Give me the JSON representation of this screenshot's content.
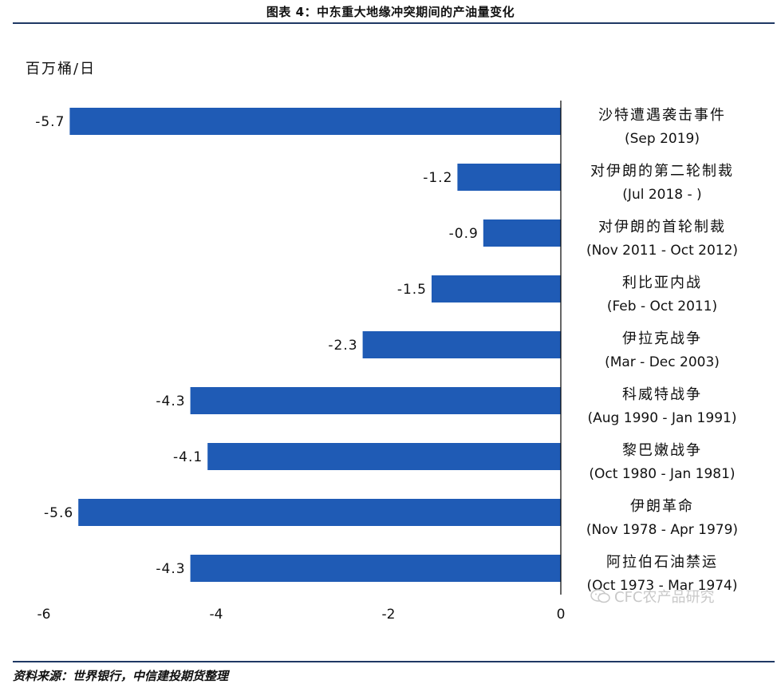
{
  "header": {
    "title": "图表 4：中东重大地缘冲突期间的产油量变化"
  },
  "footer": {
    "source": "资料来源：世界银行，中信建投期货整理"
  },
  "watermark": {
    "text": "CFC农产品研究",
    "icon": "wechat-icon"
  },
  "colors": {
    "bar": "#1f5bb5",
    "rule": "#1f3864",
    "axis": "#000000"
  },
  "chart_data": {
    "type": "bar",
    "orientation": "horizontal",
    "ylabel": "百万桶/日",
    "xlim": [
      -6,
      0
    ],
    "xticks": [
      "-6",
      "-4",
      "-2",
      "0"
    ],
    "xtick_values": [
      -6,
      -4,
      -2,
      0
    ],
    "grid": false,
    "categories": [
      {
        "name": "沙特遭遇袭击事件",
        "period": "(Sep 2019)"
      },
      {
        "name": "对伊朗的第二轮制裁",
        "period": "(Jul 2018 - )"
      },
      {
        "name": "对伊朗的首轮制裁",
        "period": "(Nov 2011 - Oct 2012)"
      },
      {
        "name": "利比亚内战",
        "period": "(Feb - Oct 2011)"
      },
      {
        "name": "伊拉克战争",
        "period": "(Mar - Dec 2003)"
      },
      {
        "name": "科威特战争",
        "period": "(Aug 1990 - Jan 1991)"
      },
      {
        "name": "黎巴嫩战争",
        "period": "(Oct 1980 - Jan 1981)"
      },
      {
        "name": "伊朗革命",
        "period": "(Nov 1978 - Apr 1979)"
      },
      {
        "name": "阿拉伯石油禁运",
        "period": "(Oct 1973 - Mar 1974)"
      }
    ],
    "values": [
      -5.7,
      -1.2,
      -0.9,
      -1.5,
      -2.3,
      -4.3,
      -4.1,
      -5.6,
      -4.3
    ],
    "value_labels": [
      "-5.7",
      "-1.2",
      "-0.9",
      "-1.5",
      "-2.3",
      "-4.3",
      "-4.1",
      "-5.6",
      "-4.3"
    ]
  }
}
